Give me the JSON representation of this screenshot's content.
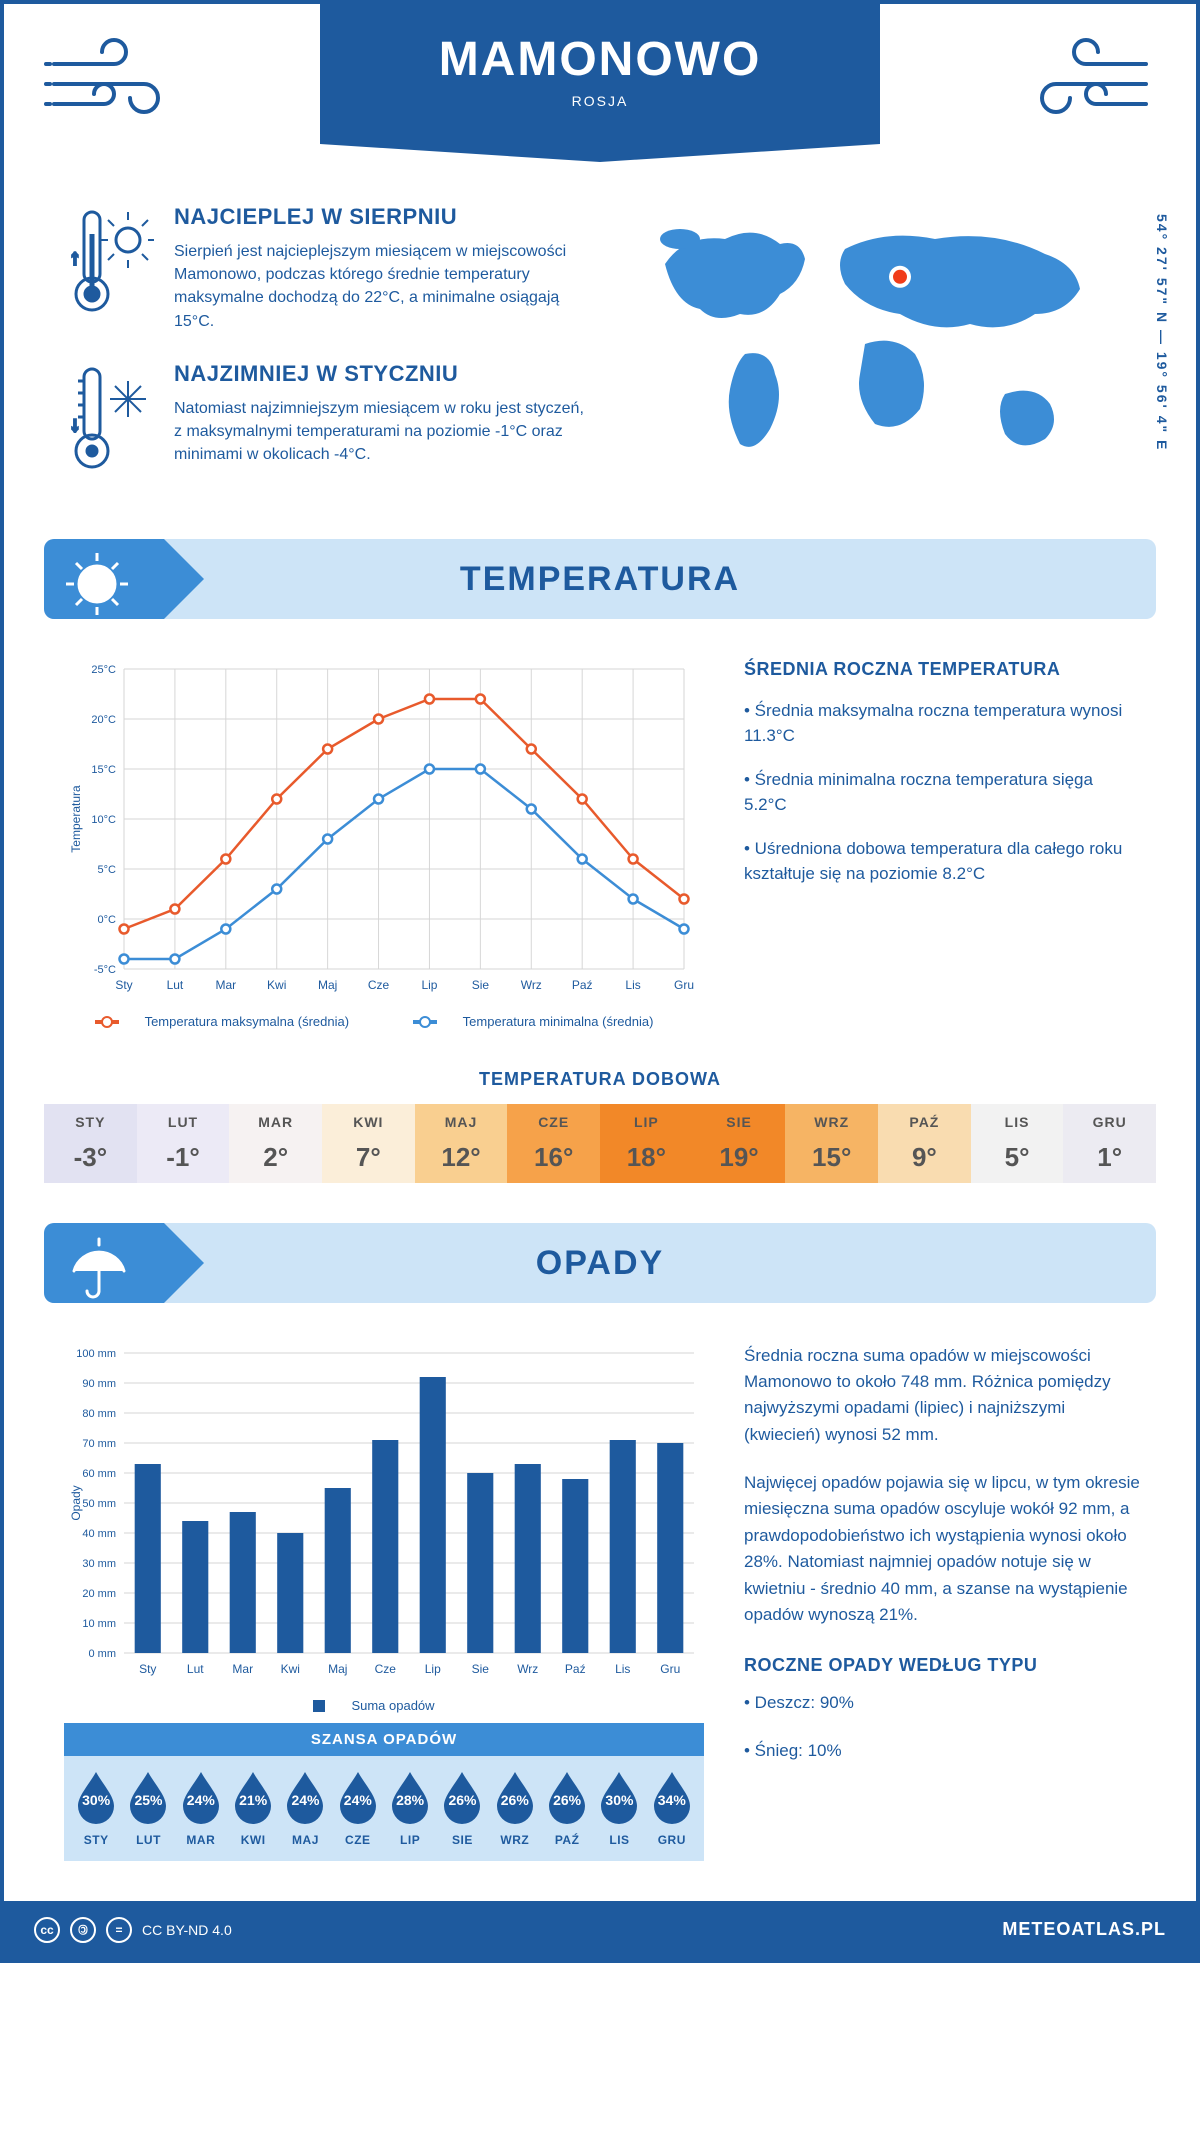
{
  "header": {
    "city": "MAMONOWO",
    "country": "ROSJA",
    "coordinates": "54° 27' 57\" N — 19° 56' 4\" E"
  },
  "intro": {
    "hot": {
      "title": "NAJCIEPLEJ W SIERPNIU",
      "body": "Sierpień jest najcieplejszym miesiącem w miejscowości Mamonowo, podczas którego średnie temperatury maksymalne dochodzą do 22°C, a minimalne osiągają 15°C."
    },
    "cold": {
      "title": "NAJZIMNIEJ W STYCZNIU",
      "body": "Natomiast najzimniejszym miesiącem w roku jest styczeń, z maksymalnymi temperaturami na poziomie -1°C oraz minimami w okolicach -4°C."
    }
  },
  "map": {
    "marker_color": "#f03c1a",
    "land_color": "#3c8dd6",
    "marker_left_pct": 55,
    "marker_top_pct": 26
  },
  "temperature": {
    "section_title": "TEMPERATURA",
    "annual_title": "ŚREDNIA ROCZNA TEMPERATURA",
    "bullets": [
      "• Średnia maksymalna roczna temperatura wynosi 11.3°C",
      "• Średnia minimalna roczna temperatura sięga 5.2°C",
      "• Uśredniona dobowa temperatura dla całego roku kształtuje się na poziomie 8.2°C"
    ],
    "chart": {
      "ylabel": "Temperatura",
      "y_ticks": [
        -5,
        0,
        5,
        10,
        15,
        20,
        25
      ],
      "y_tick_labels": [
        "-5°C",
        "0°C",
        "5°C",
        "10°C",
        "15°C",
        "20°C",
        "25°C"
      ],
      "months": [
        "Sty",
        "Lut",
        "Mar",
        "Kwi",
        "Maj",
        "Cze",
        "Lip",
        "Sie",
        "Wrz",
        "Paź",
        "Lis",
        "Gru"
      ],
      "series_max": {
        "label": "Temperatura maksymalna (średnia)",
        "color": "#e85a2c",
        "values": [
          -1,
          1,
          6,
          12,
          17,
          20,
          22,
          22,
          17,
          12,
          6,
          2
        ]
      },
      "series_min": {
        "label": "Temperatura minimalna (średnia)",
        "color": "#3c8dd6",
        "values": [
          -4,
          -4,
          -1,
          3,
          8,
          12,
          15,
          15,
          11,
          6,
          2,
          -1
        ]
      },
      "grid_color": "#d6d6d6",
      "ylim": [
        -5,
        25
      ]
    },
    "daily": {
      "title": "TEMPERATURA DOBOWA",
      "months": [
        "STY",
        "LUT",
        "MAR",
        "KWI",
        "MAJ",
        "CZE",
        "LIP",
        "SIE",
        "WRZ",
        "PAŹ",
        "LIS",
        "GRU"
      ],
      "values": [
        "-3°",
        "-1°",
        "2°",
        "7°",
        "12°",
        "16°",
        "18°",
        "19°",
        "15°",
        "9°",
        "5°",
        "1°"
      ],
      "bg_colors": [
        "#e2e2f2",
        "#eceaf6",
        "#f6f2f2",
        "#fbeed9",
        "#f9cf90",
        "#f6a24a",
        "#f28828",
        "#f28828",
        "#f6b464",
        "#f9dcb0",
        "#f2f2f2",
        "#ecebf2"
      ]
    }
  },
  "precip": {
    "section_title": "OPADY",
    "chart": {
      "ylabel": "Opady",
      "y_ticks": [
        0,
        10,
        20,
        30,
        40,
        50,
        60,
        70,
        80,
        90,
        100
      ],
      "y_tick_labels": [
        "0 mm",
        "10 mm",
        "20 mm",
        "30 mm",
        "40 mm",
        "50 mm",
        "60 mm",
        "70 mm",
        "80 mm",
        "90 mm",
        "100 mm"
      ],
      "months": [
        "Sty",
        "Lut",
        "Mar",
        "Kwi",
        "Maj",
        "Cze",
        "Lip",
        "Sie",
        "Wrz",
        "Paź",
        "Lis",
        "Gru"
      ],
      "values": [
        63,
        44,
        47,
        40,
        55,
        71,
        92,
        60,
        63,
        58,
        71,
        70
      ],
      "bar_color": "#1e5a9e",
      "grid_color": "#d6d6d6",
      "ylim": [
        0,
        100
      ],
      "legend": "Suma opadów"
    },
    "side_p1": "Średnia roczna suma opadów w miejscowości Mamonowo to około 748 mm. Różnica pomiędzy najwyższymi opadami (lipiec) i najniższymi (kwiecień) wynosi 52 mm.",
    "side_p2": "Najwięcej opadów pojawia się w lipcu, w tym okresie miesięczna suma opadów oscyluje wokół 92 mm, a prawdopodobieństwo ich wystąpienia wynosi około 28%. Natomiast najmniej opadów notuje się w kwietniu - średnio 40 mm, a szanse na wystąpienie opadów wynoszą 21%.",
    "type_title": "ROCZNE OPADY WEDŁUG TYPU",
    "types": [
      "• Deszcz: 90%",
      "• Śnieg: 10%"
    ],
    "chance": {
      "title": "SZANSA OPADÓW",
      "months": [
        "STY",
        "LUT",
        "MAR",
        "KWI",
        "MAJ",
        "CZE",
        "LIP",
        "SIE",
        "WRZ",
        "PAŹ",
        "LIS",
        "GRU"
      ],
      "values": [
        "30%",
        "25%",
        "24%",
        "21%",
        "24%",
        "24%",
        "28%",
        "26%",
        "26%",
        "26%",
        "30%",
        "34%"
      ],
      "drop_color": "#1e5a9e"
    }
  },
  "footer": {
    "license": "CC BY-ND 4.0",
    "brand": "METEOATLAS.PL"
  },
  "colors": {
    "primary": "#1e5a9e",
    "accent": "#3c8dd6",
    "pale": "#cde4f7"
  }
}
